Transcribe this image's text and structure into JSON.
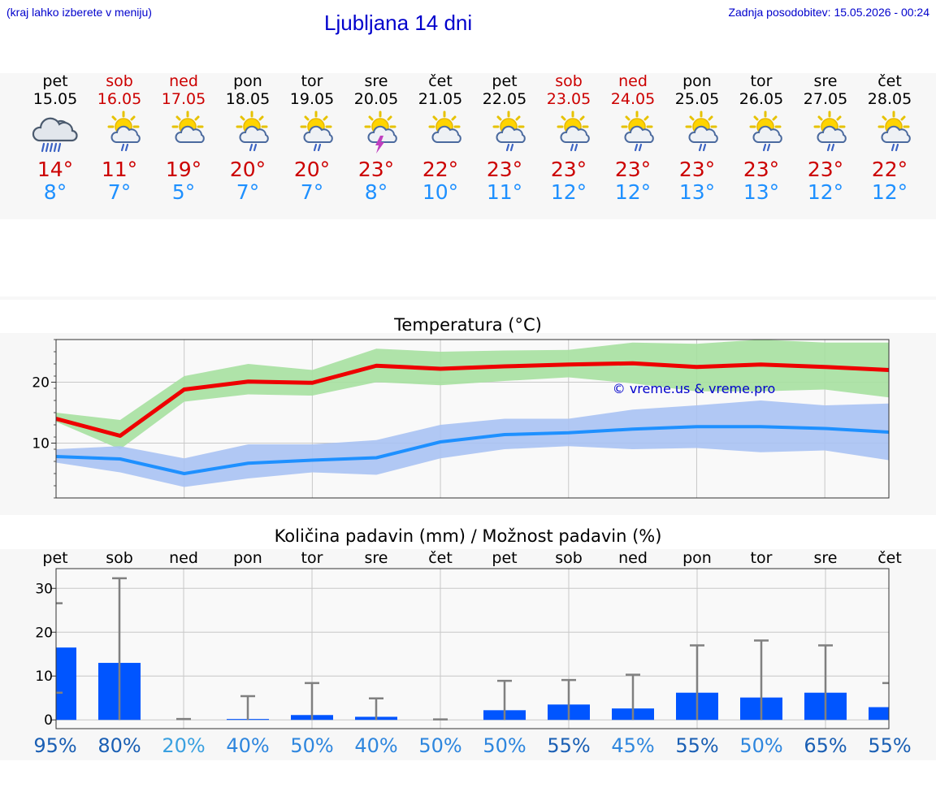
{
  "header": {
    "note": "(kraj lahko izberete v meniju)",
    "title": "Ljubljana 14 dni",
    "updated": "Zadnja posodobitev: 15.05.2026 - 00:24"
  },
  "days": [
    {
      "name": "pet",
      "date": "15.05",
      "weekend": false,
      "icon": "cloud-rain-icon",
      "max": "14°",
      "min": "8°"
    },
    {
      "name": "sob",
      "date": "16.05",
      "weekend": true,
      "icon": "sun-cloud-rain-icon",
      "max": "11°",
      "min": "7°"
    },
    {
      "name": "ned",
      "date": "17.05",
      "weekend": true,
      "icon": "sun-cloud-icon",
      "max": "19°",
      "min": "5°"
    },
    {
      "name": "pon",
      "date": "18.05",
      "weekend": false,
      "icon": "sun-cloud-rain-icon",
      "max": "20°",
      "min": "7°"
    },
    {
      "name": "tor",
      "date": "19.05",
      "weekend": false,
      "icon": "sun-cloud-rain-icon",
      "max": "20°",
      "min": "7°"
    },
    {
      "name": "sre",
      "date": "20.05",
      "weekend": false,
      "icon": "sun-thunder-icon",
      "max": "23°",
      "min": "8°"
    },
    {
      "name": "čet",
      "date": "21.05",
      "weekend": false,
      "icon": "sun-cloud-icon",
      "max": "22°",
      "min": "10°"
    },
    {
      "name": "pet",
      "date": "22.05",
      "weekend": false,
      "icon": "sun-cloud-rain-icon",
      "max": "23°",
      "min": "11°"
    },
    {
      "name": "sob",
      "date": "23.05",
      "weekend": true,
      "icon": "sun-cloud-rain-icon",
      "max": "23°",
      "min": "12°"
    },
    {
      "name": "ned",
      "date": "24.05",
      "weekend": true,
      "icon": "sun-cloud-rain-icon",
      "max": "23°",
      "min": "12°"
    },
    {
      "name": "pon",
      "date": "25.05",
      "weekend": false,
      "icon": "sun-cloud-rain-icon",
      "max": "23°",
      "min": "13°"
    },
    {
      "name": "tor",
      "date": "26.05",
      "weekend": false,
      "icon": "sun-cloud-rain-icon",
      "max": "23°",
      "min": "13°"
    },
    {
      "name": "sre",
      "date": "27.05",
      "weekend": false,
      "icon": "sun-cloud-rain-icon",
      "max": "23°",
      "min": "12°"
    },
    {
      "name": "čet",
      "date": "28.05",
      "weekend": false,
      "icon": "sun-cloud-rain-icon",
      "max": "22°",
      "min": "12°"
    }
  ],
  "colors": {
    "max_line": "#ee0000",
    "max_band": "#a6e0a0",
    "min_line": "#1e90ff",
    "min_band": "#a9c2f3",
    "bar": "#0055ff",
    "error": "#808080",
    "weekend": "#cc0000",
    "link": "#0000cc",
    "pct_high": "#1a5fb4",
    "pct_mid": "#2e86de",
    "pct_low": "#3aa0e0"
  },
  "chart_data": [
    {
      "type": "line",
      "title": "Temperatura (°C)",
      "watermark": "© vreme.us & vreme.pro",
      "x": [
        "15.05",
        "16.05",
        "17.05",
        "18.05",
        "19.05",
        "20.05",
        "21.05",
        "22.05",
        "23.05",
        "24.05",
        "25.05",
        "26.05",
        "27.05",
        "28.05"
      ],
      "ylim": [
        1,
        27
      ],
      "yticks": [
        10,
        20
      ],
      "grid": true,
      "series": [
        {
          "role": "max",
          "values": [
            14.0,
            11.2,
            18.8,
            20.1,
            19.9,
            22.7,
            22.2,
            22.6,
            22.9,
            23.1,
            22.5,
            22.9,
            22.5,
            22.0
          ],
          "band_low": [
            13.5,
            9.0,
            16.8,
            18.0,
            17.8,
            20.0,
            19.5,
            20.2,
            20.8,
            19.8,
            18.5,
            18.5,
            18.8,
            17.5
          ],
          "band_high": [
            15.0,
            13.8,
            21.0,
            23.0,
            22.0,
            25.5,
            25.0,
            25.2,
            25.3,
            26.5,
            26.3,
            27.0,
            26.5,
            26.5
          ]
        },
        {
          "role": "min",
          "values": [
            7.8,
            7.4,
            5.0,
            6.7,
            7.2,
            7.6,
            10.2,
            11.4,
            11.7,
            12.3,
            12.7,
            12.7,
            12.4,
            11.8
          ],
          "band_low": [
            6.8,
            5.2,
            2.8,
            4.2,
            5.2,
            4.8,
            7.5,
            9.0,
            9.5,
            9.0,
            9.2,
            8.5,
            8.8,
            7.2
          ],
          "band_high": [
            9.0,
            9.5,
            7.5,
            9.8,
            9.8,
            10.5,
            13.0,
            14.0,
            14.0,
            15.5,
            16.2,
            17.0,
            16.2,
            16.5
          ]
        }
      ]
    },
    {
      "type": "bar",
      "title": "Količina padavin (mm) / Možnost padavin (%)",
      "categories": [
        "pet",
        "sob",
        "ned",
        "pon",
        "tor",
        "sre",
        "čet",
        "pet",
        "sob",
        "ned",
        "pon",
        "tor",
        "sre",
        "čet"
      ],
      "ylim": [
        -2,
        34.5
      ],
      "yticks": [
        0,
        10,
        20,
        30
      ],
      "grid": true,
      "values": [
        16.5,
        13.0,
        0.0,
        0.2,
        1.1,
        0.7,
        0.0,
        2.2,
        3.5,
        2.6,
        6.2,
        5.1,
        6.2,
        2.9
      ],
      "error_high": [
        26.6,
        32.3,
        0.2,
        5.4,
        8.4,
        4.9,
        0.1,
        8.9,
        9.1,
        10.3,
        17.0,
        18.1,
        17.0,
        8.4
      ],
      "error_low": [
        6.2,
        0,
        0,
        0,
        0,
        0,
        0,
        0,
        0,
        0,
        0,
        0,
        0,
        0
      ],
      "percent": [
        "95%",
        "80%",
        "20%",
        "40%",
        "50%",
        "40%",
        "50%",
        "50%",
        "55%",
        "45%",
        "55%",
        "50%",
        "65%",
        "55%"
      ],
      "percent_values": [
        95,
        80,
        20,
        40,
        50,
        40,
        50,
        50,
        55,
        45,
        55,
        50,
        65,
        55
      ]
    }
  ]
}
